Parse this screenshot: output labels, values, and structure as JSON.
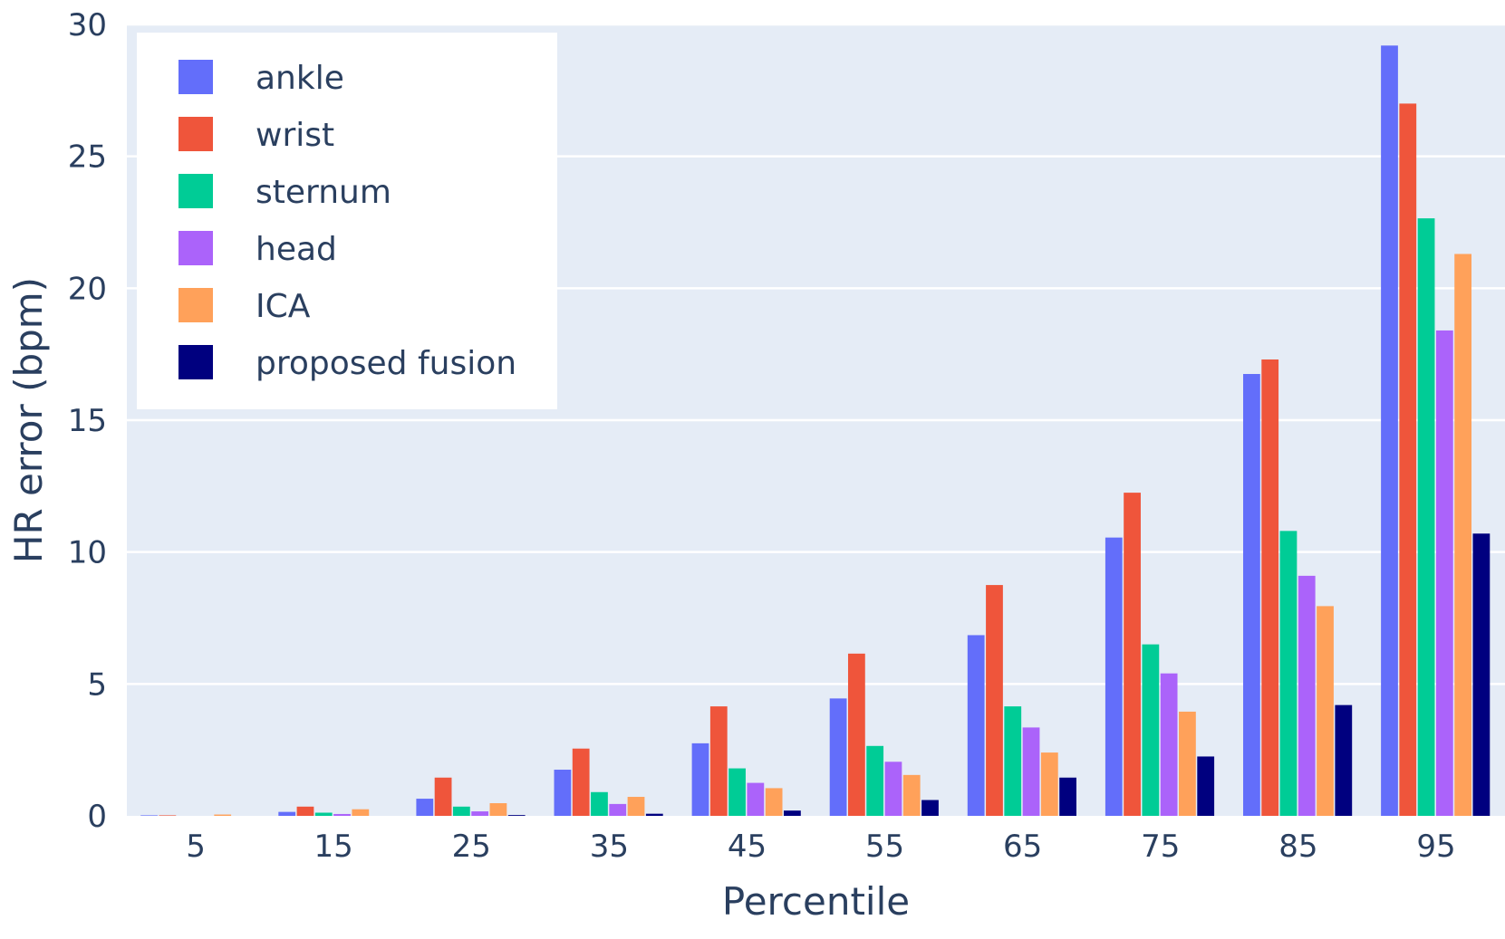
{
  "chart_data": {
    "type": "bar",
    "title": "",
    "xlabel": "Percentile",
    "ylabel": "HR error (bpm)",
    "ylim": [
      0,
      30
    ],
    "yticks": [
      0,
      5,
      10,
      15,
      20,
      25,
      30
    ],
    "categories": [
      "5",
      "15",
      "25",
      "35",
      "45",
      "55",
      "65",
      "75",
      "85",
      "95"
    ],
    "series": [
      {
        "name": "ankle",
        "color": "#636efa",
        "values": [
          0.02,
          0.15,
          0.65,
          1.75,
          2.75,
          4.45,
          6.85,
          10.55,
          16.75,
          29.2
        ]
      },
      {
        "name": "wrist",
        "color": "#ef553b",
        "values": [
          0.02,
          0.35,
          1.45,
          2.55,
          4.15,
          6.15,
          8.75,
          12.25,
          17.3,
          27.0
        ]
      },
      {
        "name": "sternum",
        "color": "#00cc96",
        "values": [
          0.0,
          0.12,
          0.35,
          0.9,
          1.8,
          2.65,
          4.15,
          6.5,
          10.8,
          22.65
        ]
      },
      {
        "name": "head",
        "color": "#ab63fa",
        "values": [
          0.0,
          0.07,
          0.17,
          0.45,
          1.25,
          2.05,
          3.35,
          5.4,
          9.1,
          18.4
        ]
      },
      {
        "name": "ICA",
        "color": "#ffa15a",
        "values": [
          0.05,
          0.25,
          0.48,
          0.72,
          1.05,
          1.55,
          2.4,
          3.95,
          7.95,
          21.3
        ]
      },
      {
        "name": "proposed fusion",
        "color": "#00007f",
        "values": [
          0.0,
          0.0,
          0.03,
          0.08,
          0.2,
          0.6,
          1.45,
          2.25,
          4.2,
          10.7
        ]
      }
    ],
    "grid": true,
    "legend": "top-left"
  }
}
